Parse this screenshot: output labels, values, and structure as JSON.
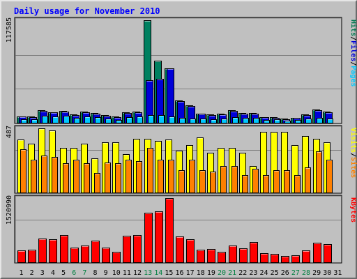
{
  "chart_data": {
    "type": "bar",
    "title": "Daily usage for November 2010",
    "days": [
      "1",
      "2",
      "3",
      "4",
      "5",
      "6",
      "7",
      "8",
      "9",
      "10",
      "11",
      "12",
      "13",
      "14",
      "15",
      "16",
      "17",
      "18",
      "19",
      "20",
      "21",
      "22",
      "23",
      "24",
      "25",
      "26",
      "27",
      "28",
      "29",
      "30",
      "31"
    ],
    "weekend_days": [
      "6",
      "7",
      "13",
      "14",
      "20",
      "21",
      "27",
      "28"
    ],
    "panels": [
      {
        "id": "requests",
        "ymax_label": "117585",
        "ymax": 117585,
        "legend": [
          "Pages",
          "/",
          "Files",
          "/",
          "Hits"
        ],
        "legend_colors": [
          "#00c8ff",
          "#000000",
          "#0000d8",
          "#000000",
          "#007850"
        ],
        "series": [
          {
            "name": "Hits",
            "color": "#008060",
            "values": [
              7400,
              7000,
              14400,
              12200,
              13200,
              9600,
              12500,
              11000,
              8600,
              6800,
              11800,
              12800,
              117585,
              71000,
              62600,
              25500,
              19800,
              10500,
              9200,
              10400,
              14200,
              11200,
              11200,
              6300,
              6200,
              4600,
              5600,
              9300,
              14800,
              12800,
              0
            ]
          },
          {
            "name": "Files",
            "color": "#0000d8",
            "values": [
              6900,
              6600,
              13600,
              11700,
              12600,
              9100,
              11900,
              10500,
              8200,
              6400,
              11200,
              12200,
              49000,
              50000,
              62600,
              24400,
              18900,
              10000,
              8800,
              9900,
              13500,
              10600,
              10600,
              6000,
              5900,
              4300,
              5300,
              8800,
              14000,
              12200,
              0
            ]
          },
          {
            "name": "Pages",
            "color": "#00c8ff",
            "values": [
              3900,
              3600,
              8200,
              7000,
              7600,
              5300,
              7100,
              6200,
              4600,
              3500,
              6600,
              7100,
              8700,
              8700,
              7200,
              5400,
              5100,
              4500,
              4300,
              4800,
              6200,
              5600,
              5300,
              3400,
              3600,
              2300,
              2900,
              4700,
              5900,
              5100,
              0
            ]
          }
        ]
      },
      {
        "id": "visitors",
        "ymax_label": "487",
        "ymax": 487,
        "legend": [
          "Sites",
          "/",
          "Visits"
        ],
        "legend_colors": [
          "#ff8000",
          "#000000",
          "#ffff00"
        ],
        "series": [
          {
            "name": "Visits",
            "color": "#ffff00",
            "values": [
              400,
              370,
              487,
              470,
              340,
              340,
              370,
              260,
              380,
              380,
              290,
              410,
              410,
              390,
              400,
              320,
              360,
              420,
              300,
              340,
              340,
              300,
              200,
              460,
              460,
              460,
              360,
              430,
              410,
              380,
              0
            ]
          },
          {
            "name": "Sites",
            "color": "#ff8000",
            "values": [
              330,
              250,
              280,
              270,
              220,
              250,
              220,
              150,
              230,
              220,
              250,
              240,
              340,
              250,
              250,
              170,
              250,
              170,
              160,
              200,
              200,
              130,
              180,
              130,
              170,
              170,
              130,
              190,
              310,
              250,
              0
            ]
          }
        ]
      },
      {
        "id": "traffic",
        "ymax_label": "1520990",
        "ymax": 1520990,
        "legend": [
          "KBytes"
        ],
        "legend_colors": [
          "#ff0000"
        ],
        "series": [
          {
            "name": "KBytes",
            "color": "#ff0000",
            "values": [
              275000,
              292000,
              560000,
              540000,
              640000,
              350000,
              390000,
              515000,
              340000,
              245000,
              630000,
              650000,
              1180000,
              1200000,
              1520990,
              610000,
              540000,
              305000,
              320000,
              250000,
              395000,
              330000,
              475000,
              210000,
              200000,
              150000,
              170000,
              285000,
              455000,
              430000,
              0
            ]
          }
        ]
      }
    ]
  },
  "colors": {
    "title": "#0000ff",
    "weekday": "#000000",
    "weekend": "#008040",
    "plot_bg": "#c0c0c0",
    "frame_bg": "#c0c0c0"
  }
}
